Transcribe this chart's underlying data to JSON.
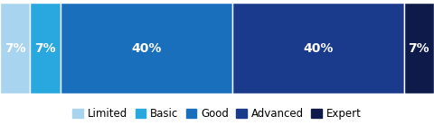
{
  "categories": [
    "Limited",
    "Basic",
    "Good",
    "Advanced",
    "Expert"
  ],
  "values": [
    7,
    7,
    40,
    40,
    7
  ],
  "colors": [
    "#a8d4f0",
    "#29a8e0",
    "#1a6fbc",
    "#1a3a8c",
    "#0d1a4a"
  ],
  "text_color": "#ffffff",
  "background_color": "#ffffff",
  "label_fontsize": 10,
  "legend_fontsize": 8.5
}
